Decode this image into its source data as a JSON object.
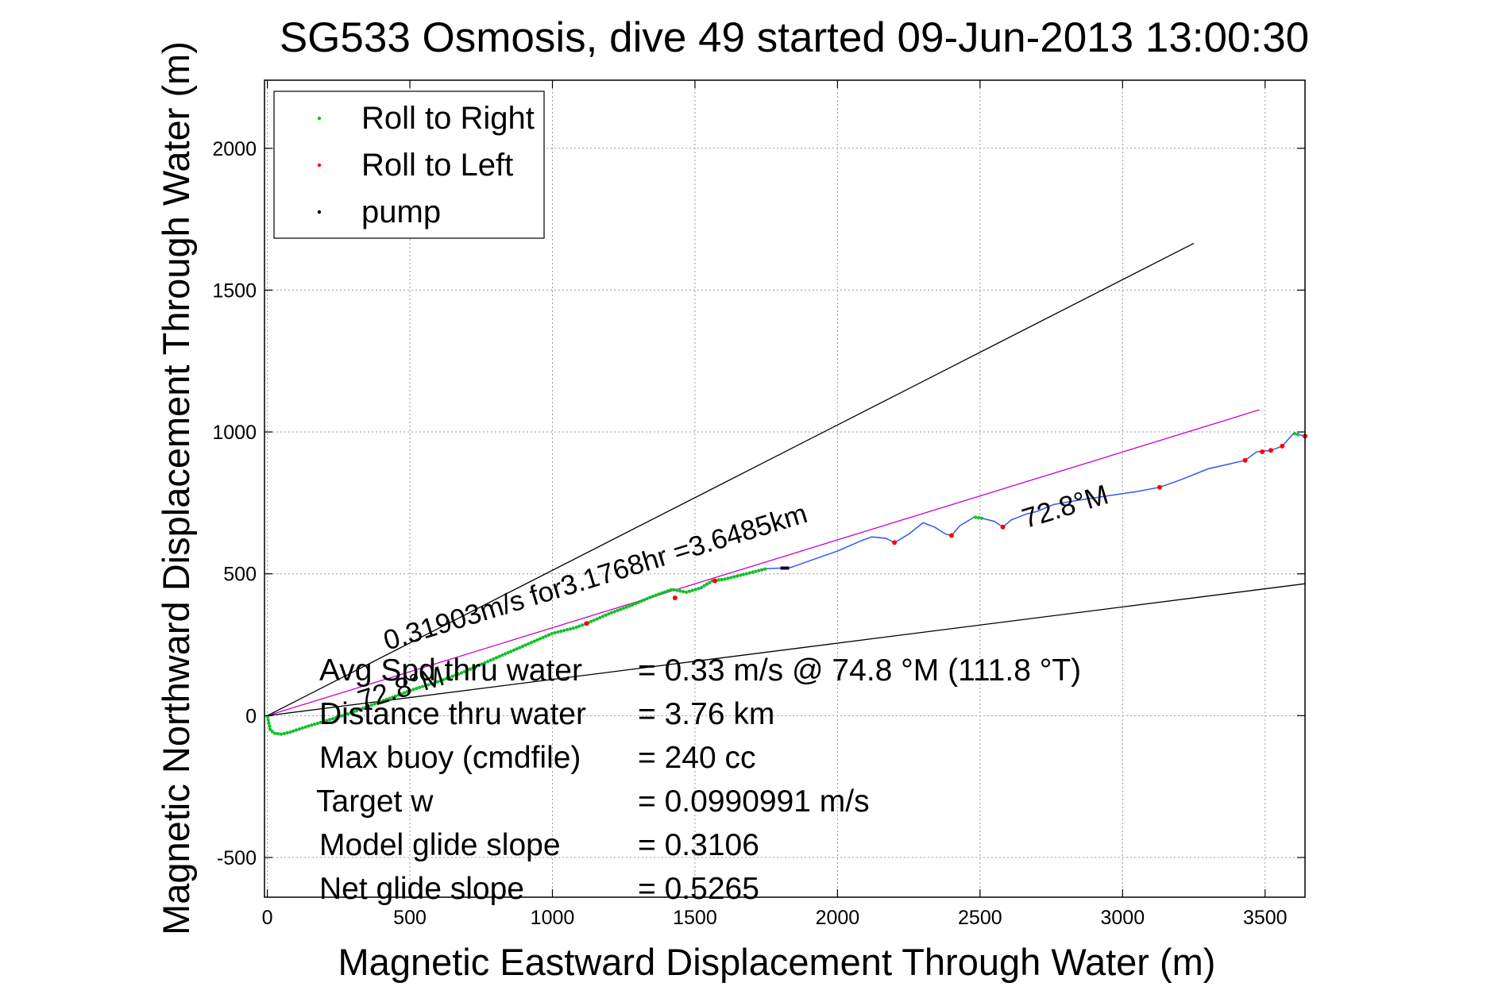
{
  "chart_data": {
    "type": "scatter",
    "title": "SG533 Osmosis, dive 49 started 09-Jun-2013 13:00:30",
    "xlabel": "Magnetic Eastward Displacement Through Water (m)",
    "ylabel": "Magnetic Northward Displacement Through Water (m)",
    "xlim": [
      -10,
      3640
    ],
    "ylim": [
      -640,
      2240
    ],
    "xticks": [
      "0",
      "500",
      "1000",
      "1500",
      "2000",
      "2500",
      "3000",
      "3500"
    ],
    "yticks": [
      "-500",
      "0",
      "500",
      "1000",
      "1500",
      "2000"
    ],
    "grid": true,
    "legend_position": "top-left",
    "legend": [
      {
        "label": "Roll to Right",
        "color": "#00cc00"
      },
      {
        "label": "Roll to Left",
        "color": "#ff0000"
      },
      {
        "label": "pump",
        "color": "#000033"
      }
    ],
    "track": {
      "name": "track",
      "color": "#3355ff",
      "x": [
        0,
        10,
        25,
        50,
        80,
        110,
        150,
        200,
        280,
        360,
        440,
        520,
        600,
        680,
        760,
        840,
        920,
        1000,
        1080,
        1120,
        1200,
        1280,
        1350,
        1420,
        1470,
        1520,
        1560,
        1600,
        1680,
        1750,
        1800,
        1830,
        1900,
        2000,
        2080,
        2120,
        2170,
        2200,
        2250,
        2300,
        2340,
        2380,
        2400,
        2430,
        2480,
        2510,
        2550,
        2580,
        2610,
        2660,
        2700,
        2760,
        2850,
        2950,
        3050,
        3130,
        3200,
        3300,
        3430,
        3470,
        3520,
        3560,
        3600,
        3620,
        3640
      ],
      "y": [
        0,
        -50,
        -62,
        -65,
        -58,
        -48,
        -35,
        -20,
        5,
        35,
        65,
        95,
        120,
        150,
        185,
        220,
        255,
        290,
        310,
        325,
        360,
        390,
        420,
        445,
        435,
        450,
        475,
        480,
        500,
        518,
        520,
        520,
        545,
        580,
        615,
        630,
        625,
        610,
        640,
        680,
        665,
        640,
        635,
        670,
        700,
        695,
        685,
        665,
        690,
        710,
        720,
        745,
        760,
        775,
        790,
        805,
        830,
        870,
        900,
        930,
        935,
        950,
        995,
        990,
        985
      ]
    },
    "roll_to_right_segments": [
      {
        "x0": 0,
        "x1": 1760
      },
      {
        "x0": 2110,
        "x1": 2160
      },
      {
        "x0": 2290,
        "x1": 2320
      },
      {
        "x0": 2470,
        "x1": 2520
      },
      {
        "x0": 3590,
        "x1": 3620
      }
    ],
    "pump_segment": {
      "x0": 1760,
      "x1": 1830
    },
    "roll_to_left_points": {
      "x": [
        1120,
        1430,
        1570,
        2200,
        2400,
        2580,
        3130,
        3430,
        3490,
        3520,
        3560,
        3640
      ],
      "y": [
        325,
        415,
        475,
        610,
        635,
        665,
        805,
        900,
        930,
        935,
        950,
        985
      ]
    },
    "reference_lines": [
      {
        "color": "#000000",
        "x": [
          0,
          3250
        ],
        "y": [
          0,
          1665
        ]
      },
      {
        "color": "#cc00cc",
        "x": [
          0,
          3480
        ],
        "y": [
          0,
          1078
        ]
      },
      {
        "color": "#000000",
        "x": [
          0,
          3640
        ],
        "y": [
          0,
          465
        ]
      }
    ],
    "annotations": [
      {
        "text": "0.31903m/s for3.1768hr =3.6485km",
        "x": 420,
        "y": 230,
        "angle": -17
      },
      {
        "text": "72.8°M",
        "x": 330,
        "y": 20,
        "angle": -17
      },
      {
        "text": "72.8°M",
        "x": 2660,
        "y": 660,
        "angle": -17
      }
    ],
    "info_rows": [
      {
        "label": "Avg Spd thru water",
        "value": "=  0.33 m/s @  74.8 °M (111.8 °T)"
      },
      {
        "label": "Distance thru water",
        "value": "=  3.76 km"
      },
      {
        "label": "Max buoy (cmdfile)",
        "value": "= 240 cc"
      },
      {
        "label": "Target w",
        "value": "= 0.0990991 m/s"
      },
      {
        "label": "Model glide slope",
        "value": "= 0.3106"
      },
      {
        "label": "Net glide slope",
        "value": "= 0.5265"
      }
    ]
  }
}
